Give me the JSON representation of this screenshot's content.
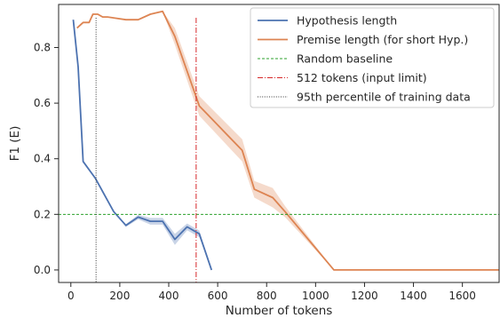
{
  "chart_data": {
    "type": "line",
    "title": "",
    "xlabel": "Number of tokens",
    "ylabel": "F1 (E)",
    "xlim": [
      -50,
      1750
    ],
    "ylim": [
      -0.045,
      0.955
    ],
    "xticks": [
      0,
      200,
      400,
      600,
      800,
      1000,
      1200,
      1400,
      1600
    ],
    "yticks": [
      0.0,
      0.2,
      0.4,
      0.6,
      0.8
    ],
    "xtick_labels": [
      "0",
      "200",
      "400",
      "600",
      "800",
      "1000",
      "1200",
      "1400",
      "1600"
    ],
    "ytick_labels": [
      "0.0",
      "0.2",
      "0.4",
      "0.6",
      "0.8"
    ],
    "grid": false,
    "legend_position": "top-right",
    "colors": {
      "hypothesis": "#4c72b0",
      "premise": "#dd8452",
      "random_baseline": "#2ca02c",
      "input_limit": "#d62728",
      "percentile": "#333333"
    },
    "series": [
      {
        "name": "Hypothesis length",
        "style": "solid",
        "x": [
          10,
          30,
          50,
          100,
          150,
          175,
          225,
          275,
          325,
          375,
          425,
          475,
          525,
          575
        ],
        "y": [
          0.9,
          0.73,
          0.39,
          0.33,
          0.25,
          0.21,
          0.16,
          0.19,
          0.175,
          0.175,
          0.11,
          0.155,
          0.13,
          0.0
        ],
        "band": [
          0.0,
          0.01,
          0.0,
          0.0,
          0.0,
          0.0,
          0.005,
          0.008,
          0.012,
          0.012,
          0.02,
          0.012,
          0.012,
          0.0
        ]
      },
      {
        "name": "Premise length (for short Hyp.)",
        "style": "solid",
        "x": [
          25,
          50,
          75,
          90,
          110,
          130,
          150,
          225,
          275,
          325,
          375,
          425,
          525,
          700,
          750,
          825,
          875,
          1075,
          1100,
          1750
        ],
        "y": [
          0.87,
          0.89,
          0.89,
          0.92,
          0.92,
          0.91,
          0.91,
          0.9,
          0.9,
          0.92,
          0.93,
          0.84,
          0.59,
          0.43,
          0.29,
          0.26,
          0.21,
          0.0,
          0.0,
          0.0
        ],
        "band": [
          0.0,
          0.0,
          0.0,
          0.0,
          0.0,
          0.0,
          0.0,
          0.0,
          0.0,
          0.0,
          0.0,
          0.03,
          0.035,
          0.04,
          0.03,
          0.035,
          0.02,
          0.0,
          0.0,
          0.0
        ]
      }
    ],
    "reference_lines": [
      {
        "name": "Random baseline",
        "orientation": "horizontal",
        "value": 0.2,
        "style": "dashed"
      },
      {
        "name": "512 tokens (input limit)",
        "orientation": "vertical",
        "value": 512,
        "style": "dashdot"
      },
      {
        "name": "95th percentile of training data",
        "orientation": "vertical",
        "value": 103,
        "style": "dotted"
      }
    ],
    "legend": [
      "Hypothesis length",
      "Premise length (for short Hyp.)",
      "Random baseline",
      "512 tokens (input limit)",
      "95th percentile of training data"
    ]
  }
}
